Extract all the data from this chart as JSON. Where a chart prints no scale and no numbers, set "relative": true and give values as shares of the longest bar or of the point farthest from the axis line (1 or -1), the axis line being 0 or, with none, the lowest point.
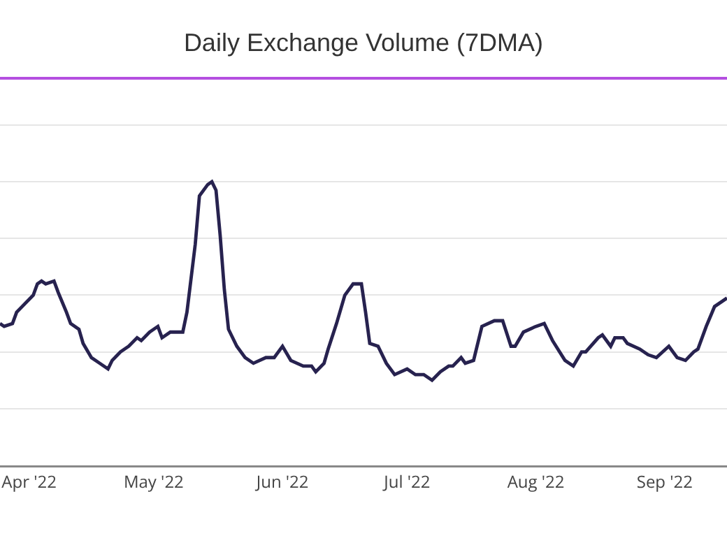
{
  "chart_data": {
    "type": "line",
    "title": "Daily Exchange Volume (7DMA)",
    "relative": true,
    "grid": "y",
    "marker": "none",
    "line_style": "solid",
    "xlim": [
      "2022-03-25",
      "2022-09-16"
    ],
    "xticks": [
      {
        "value": "2022-04-01",
        "label": "Apr '22"
      },
      {
        "value": "2022-05-01",
        "label": "May '22"
      },
      {
        "value": "2022-06-01",
        "label": "Jun '22"
      },
      {
        "value": "2022-07-01",
        "label": "Jul '22"
      },
      {
        "value": "2022-08-01",
        "label": "Aug '22"
      },
      {
        "value": "2022-09-01",
        "label": "Sep '22"
      }
    ],
    "series": [
      {
        "color": "#27224f",
        "x": [
          "2022-03-25",
          "2022-03-26",
          "2022-03-28",
          "2022-03-29",
          "2022-03-31",
          "2022-04-02",
          "2022-04-03",
          "2022-04-04",
          "2022-04-05",
          "2022-04-07",
          "2022-04-08",
          "2022-04-10",
          "2022-04-11",
          "2022-04-13",
          "2022-04-14",
          "2022-04-16",
          "2022-04-18",
          "2022-04-20",
          "2022-04-21",
          "2022-04-23",
          "2022-04-25",
          "2022-04-27",
          "2022-04-28",
          "2022-04-30",
          "2022-05-02",
          "2022-05-03",
          "2022-05-05",
          "2022-05-07",
          "2022-05-08",
          "2022-05-09",
          "2022-05-11",
          "2022-05-12",
          "2022-05-14",
          "2022-05-15",
          "2022-05-16",
          "2022-05-17",
          "2022-05-18",
          "2022-05-19",
          "2022-05-21",
          "2022-05-23",
          "2022-05-25",
          "2022-05-28",
          "2022-05-30",
          "2022-06-01",
          "2022-06-03",
          "2022-06-06",
          "2022-06-08",
          "2022-06-09",
          "2022-06-11",
          "2022-06-12",
          "2022-06-14",
          "2022-06-16",
          "2022-06-17",
          "2022-06-18",
          "2022-06-20",
          "2022-06-21",
          "2022-06-22",
          "2022-06-24",
          "2022-06-26",
          "2022-06-28",
          "2022-07-01",
          "2022-07-03",
          "2022-07-05",
          "2022-07-07",
          "2022-07-09",
          "2022-07-11",
          "2022-07-12",
          "2022-07-14",
          "2022-07-15",
          "2022-07-17",
          "2022-07-19",
          "2022-07-22",
          "2022-07-24",
          "2022-07-26",
          "2022-07-27",
          "2022-07-29",
          "2022-08-01",
          "2022-08-03",
          "2022-08-05",
          "2022-08-08",
          "2022-08-10",
          "2022-08-12",
          "2022-08-13",
          "2022-08-16",
          "2022-08-17",
          "2022-08-19",
          "2022-08-20",
          "2022-08-22",
          "2022-08-23",
          "2022-08-26",
          "2022-08-28",
          "2022-08-30",
          "2022-09-02",
          "2022-09-04",
          "2022-09-06",
          "2022-09-08",
          "2022-09-09",
          "2022-09-11",
          "2022-09-13",
          "2022-09-16"
        ],
        "values": [
          0.5,
          0.49,
          0.5,
          0.54,
          0.57,
          0.6,
          0.64,
          0.65,
          0.64,
          0.65,
          0.61,
          0.54,
          0.5,
          0.48,
          0.43,
          0.38,
          0.36,
          0.34,
          0.37,
          0.4,
          0.42,
          0.45,
          0.44,
          0.47,
          0.49,
          0.45,
          0.47,
          0.47,
          0.47,
          0.54,
          0.78,
          0.95,
          0.99,
          1.0,
          0.97,
          0.81,
          0.62,
          0.48,
          0.42,
          0.38,
          0.36,
          0.38,
          0.38,
          0.42,
          0.37,
          0.35,
          0.35,
          0.33,
          0.36,
          0.41,
          0.5,
          0.6,
          0.62,
          0.64,
          0.64,
          0.54,
          0.43,
          0.42,
          0.36,
          0.32,
          0.34,
          0.32,
          0.32,
          0.3,
          0.33,
          0.35,
          0.35,
          0.38,
          0.36,
          0.37,
          0.49,
          0.51,
          0.51,
          0.42,
          0.42,
          0.47,
          0.49,
          0.5,
          0.44,
          0.37,
          0.35,
          0.4,
          0.4,
          0.45,
          0.46,
          0.42,
          0.45,
          0.45,
          0.43,
          0.41,
          0.39,
          0.38,
          0.42,
          0.38,
          0.37,
          0.4,
          0.41,
          0.49,
          0.56,
          0.59
        ]
      }
    ]
  }
}
